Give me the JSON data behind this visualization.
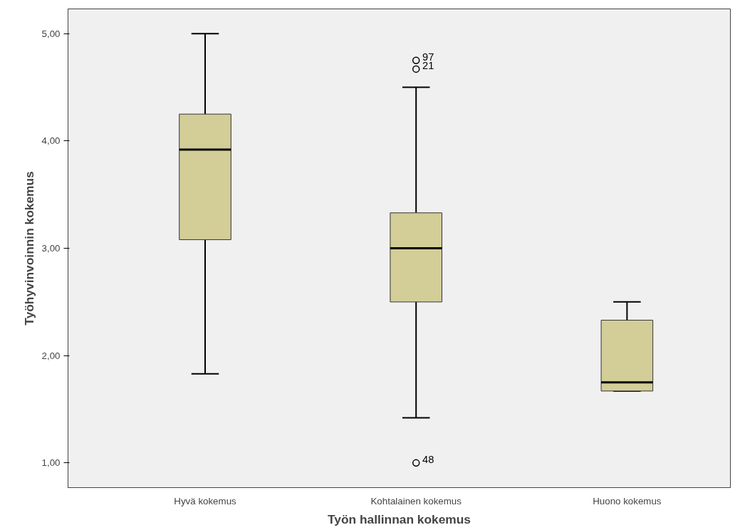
{
  "chart_data": {
    "type": "box",
    "xlabel": "Työn hallinnan kokemus",
    "ylabel": "Työhyvinvoinnin kokemus",
    "categories": [
      "Hyvä kokemus",
      "Kohtalainen kokemus",
      "Huono kokemus"
    ],
    "color": "#d3ce98",
    "boxes": [
      {
        "low": 1.83,
        "q1": 3.08,
        "median": 3.92,
        "q3": 4.25,
        "high": 5.0
      },
      {
        "low": 1.42,
        "q1": 2.5,
        "median": 3.0,
        "q3": 3.33,
        "high": 4.5,
        "outliers": [
          4.75,
          4.67,
          1.0
        ]
      },
      {
        "low": 1.67,
        "q1": 1.67,
        "median": 1.75,
        "q3": 2.33,
        "high": 2.5
      }
    ],
    "ylim": [
      0.77,
      5.23
    ],
    "yticks": [
      {
        "value": 1,
        "label": "1,00"
      },
      {
        "value": 2,
        "label": "2,00"
      },
      {
        "value": 3,
        "label": "3,00"
      },
      {
        "value": 4,
        "label": "4,00"
      },
      {
        "value": 5,
        "label": "5,00"
      }
    ],
    "annotations": [
      "97",
      "21",
      "48"
    ],
    "grid": false
  }
}
